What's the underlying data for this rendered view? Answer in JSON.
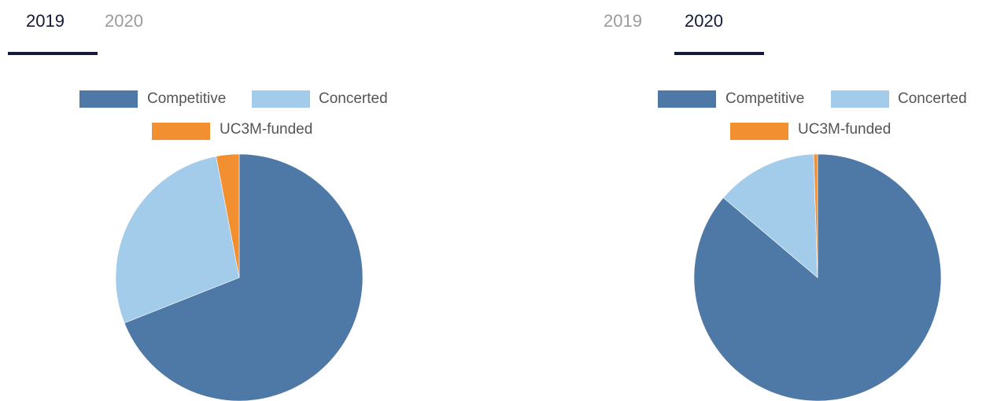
{
  "colors": {
    "competitive": "#4e78a6",
    "concerted": "#a3cbea",
    "uc3m_funded": "#f28f30",
    "tab_active": "#131a3a",
    "tab_inactive": "#9b9b9b",
    "legend_text": "#555555"
  },
  "panels": [
    {
      "tabs": [
        {
          "label": "2019",
          "active": true
        },
        {
          "label": "2020",
          "active": false
        }
      ]
    },
    {
      "tabs": [
        {
          "label": "2019",
          "active": false
        },
        {
          "label": "2020",
          "active": true
        }
      ]
    }
  ],
  "chart_data": [
    {
      "type": "pie",
      "year": "2019",
      "legend": [
        "Competitive",
        "Concerted",
        "UC3M-funded"
      ],
      "series": [
        {
          "name": "Competitive",
          "value": 69
        },
        {
          "name": "Concerted",
          "value": 28
        },
        {
          "name": "UC3M-funded",
          "value": 3
        }
      ]
    },
    {
      "type": "pie",
      "year": "2020",
      "legend": [
        "Competitive",
        "Concerted",
        "UC3M-funded"
      ],
      "series": [
        {
          "name": "Competitive",
          "value": 86.2
        },
        {
          "name": "Concerted",
          "value": 13.3
        },
        {
          "name": "UC3M-funded",
          "value": 0.5
        }
      ]
    }
  ]
}
